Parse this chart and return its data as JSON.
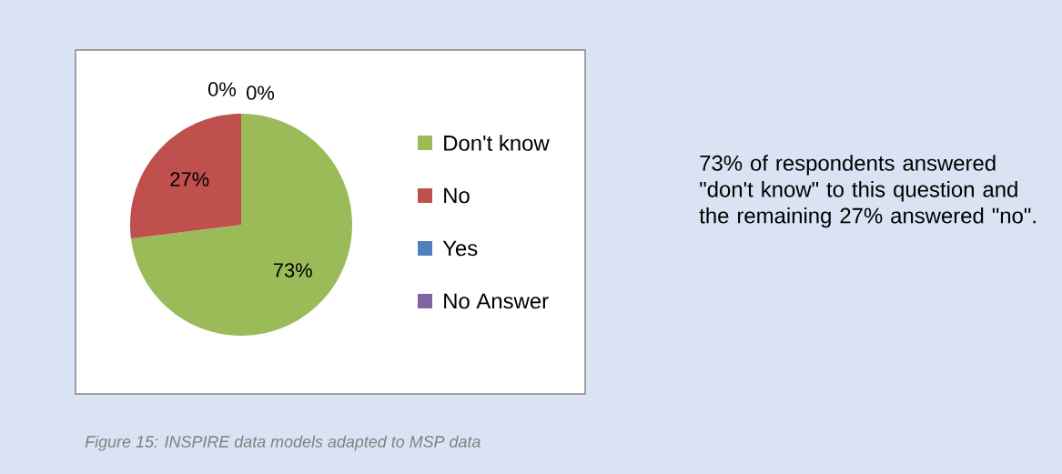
{
  "chart_data": {
    "type": "pie",
    "categories": [
      "Don't know",
      "No",
      "Yes",
      "No Answer"
    ],
    "values": [
      73,
      27,
      0,
      0
    ],
    "colors": [
      "#9bbb59",
      "#c0504d",
      "#4f81bd",
      "#8064a2"
    ],
    "value_labels": [
      "73%",
      "27%",
      "0%",
      "0%"
    ],
    "legend": "right",
    "annotations": [
      "73% of respondents answered \"don't know\" to this question and the remaining 27% answered \"no\".",
      "Figure 15: INSPIRE data models adapted to MSP data"
    ]
  }
}
